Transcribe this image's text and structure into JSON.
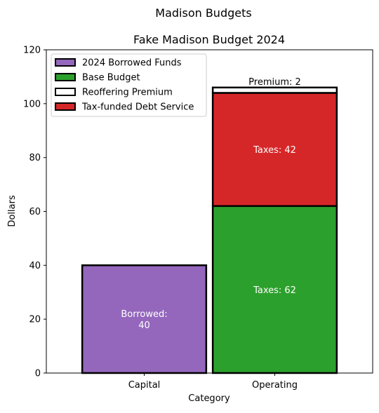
{
  "figure": {
    "suptitle": "Madison Budgets"
  },
  "chart_data": {
    "type": "bar",
    "stacked": true,
    "title": "Fake Madison Budget 2024",
    "xlabel": "Category",
    "ylabel": "Dollars",
    "ylim": [
      0,
      120
    ],
    "yticks": [
      0,
      20,
      40,
      60,
      80,
      100,
      120
    ],
    "categories": [
      "Capital",
      "Operating"
    ],
    "grid": false,
    "legend_position": "upper-left",
    "series": [
      {
        "name": "2024 Borrowed Funds",
        "color": "#9467bd",
        "values": [
          40,
          0
        ],
        "labels": [
          "Borrowed:\n40",
          ""
        ],
        "label_color": "white"
      },
      {
        "name": "Base Budget",
        "color": "#2ca02c",
        "values": [
          0,
          62
        ],
        "labels": [
          "",
          "Taxes: 62"
        ],
        "label_color": "white"
      },
      {
        "name": "Reoffering Premium",
        "color": "#ffffff",
        "values": [
          0,
          2
        ],
        "labels": [
          "",
          "Premium: 2"
        ],
        "label_color": "black"
      },
      {
        "name": "Tax-funded Debt Service",
        "color": "#d62728",
        "values": [
          0,
          42
        ],
        "labels": [
          "",
          "Taxes: 42"
        ],
        "label_color": "white"
      }
    ],
    "stack_order": [
      0,
      1,
      3,
      2
    ]
  }
}
